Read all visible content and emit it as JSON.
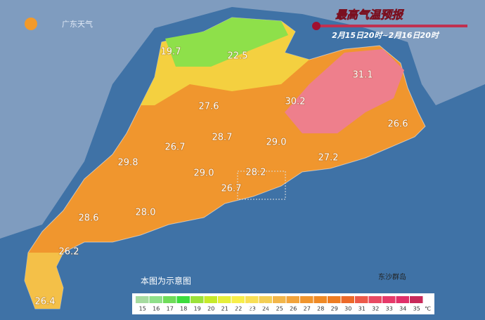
{
  "logo": "广东天气",
  "title": "最高气温预报",
  "subtitle": "2月15日20时~2月16日20时",
  "temperatures": [
    "19.7",
    "22.5",
    "31.1",
    "30.2",
    "27.6",
    "26.6",
    "28.7",
    "29.0",
    "26.7",
    "29.8",
    "27.2",
    "28.2",
    "29.0",
    "26.7",
    "28.6",
    "28.0",
    "26.2",
    "26.4"
  ],
  "note": "本图为示意图",
  "island": "东沙群岛",
  "watermark": "@广东天气",
  "legend": {
    "ticks": [
      15,
      16,
      17,
      18,
      19,
      20,
      21,
      22,
      23,
      24,
      25,
      26,
      27,
      28,
      29,
      30,
      31,
      32,
      33,
      34,
      35
    ],
    "colors": [
      "#a6dba0",
      "#8fe08a",
      "#6fdc5a",
      "#3ddc3d",
      "#9be23a",
      "#c6ea2a",
      "#e6ef3a",
      "#f7ee4a",
      "#f8df56",
      "#f3ce55",
      "#f2b64a",
      "#f2a43c",
      "#f0952e",
      "#ef8a26",
      "#ee7d22",
      "#ec6a2a",
      "#ec5a4a",
      "#e84a63",
      "#e63a6a",
      "#e0306a",
      "#c82a5a"
    ],
    "unit": "℃"
  }
}
